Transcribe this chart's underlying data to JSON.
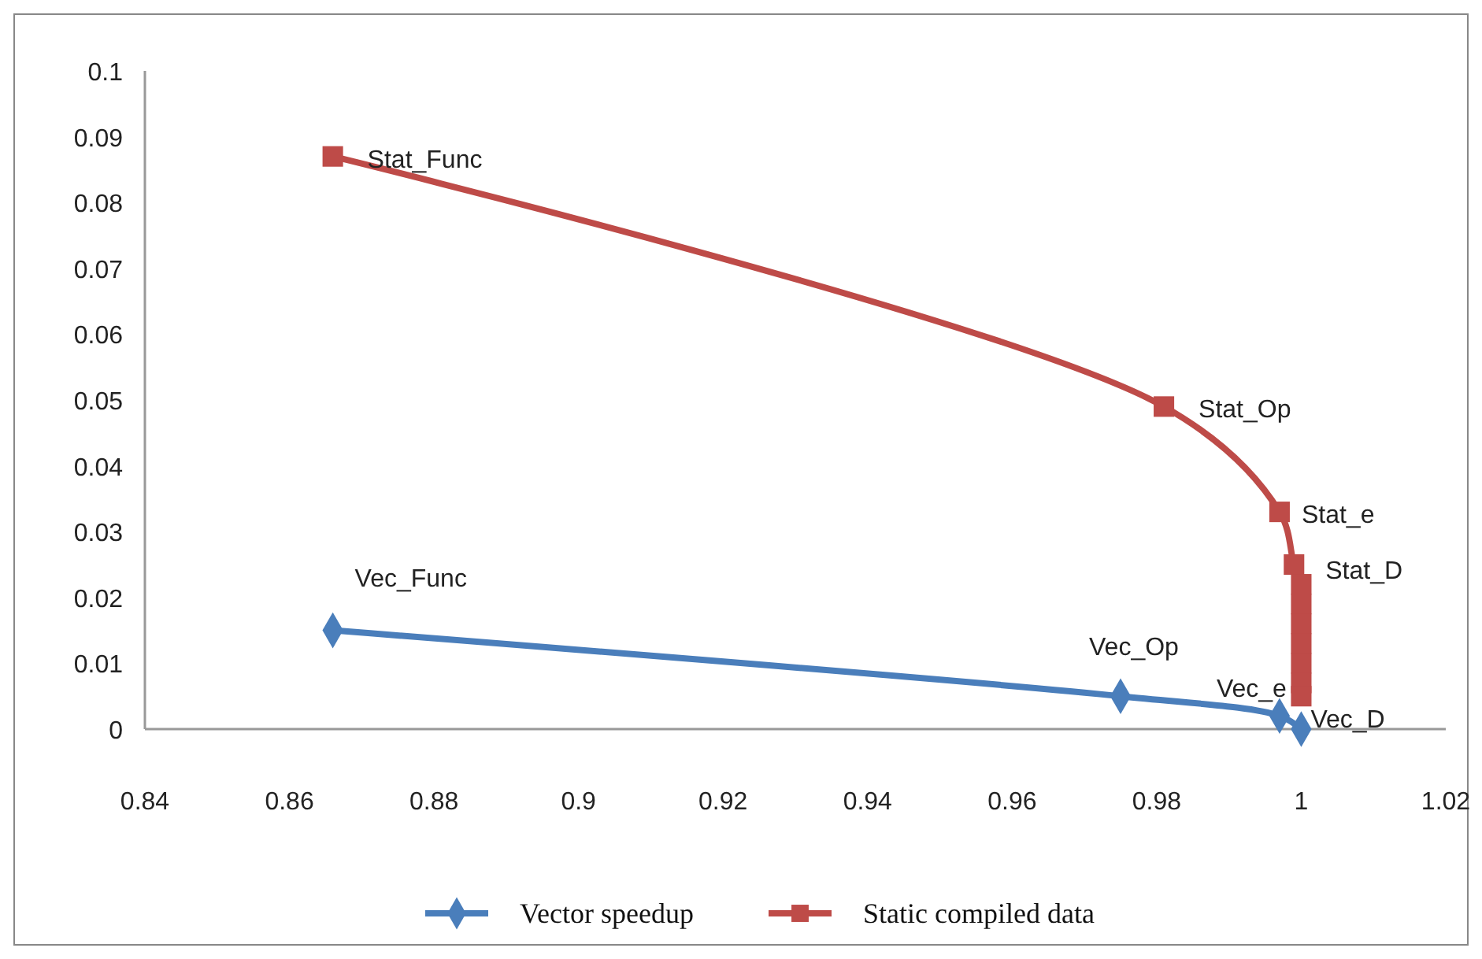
{
  "chart_data": {
    "type": "line",
    "xlim": [
      0.84,
      1.02
    ],
    "xticks": [
      0.84,
      0.86,
      0.88,
      0.9,
      0.92,
      0.94,
      0.96,
      0.98,
      1,
      1.02
    ],
    "ylim": [
      0,
      0.1
    ],
    "yticks": [
      0,
      0.01,
      0.02,
      0.03,
      0.04,
      0.05,
      0.06,
      0.07,
      0.08,
      0.09,
      0.1
    ],
    "grid": false,
    "legend": "bottom",
    "line_style": "solid",
    "series": [
      {
        "name": "Vector speedup",
        "color": "#4a7ebb",
        "marker": "diamond",
        "x": [
          0.866,
          0.975,
          0.997,
          1.0
        ],
        "values": [
          0.015,
          0.005,
          0.002,
          0.0
        ]
      },
      {
        "name": "Static compiled data",
        "color": "#be4b48",
        "marker": "square",
        "x": [
          0.866,
          0.981,
          0.997,
          0.999,
          1.0,
          1.0,
          1.0,
          1.0,
          1.0,
          1.0,
          1.0
        ],
        "values": [
          0.087,
          0.049,
          0.033,
          0.025,
          0.022,
          0.019,
          0.016,
          0.013,
          0.01,
          0.007,
          0.005
        ]
      }
    ],
    "annotations": [
      {
        "text": "Stat_Func",
        "x": 0.866,
        "y": 0.087
      },
      {
        "text": "Stat_Op",
        "x": 0.981,
        "y": 0.049
      },
      {
        "text": "Stat_e",
        "x": 0.997,
        "y": 0.033
      },
      {
        "text": "Stat_D",
        "x": 0.999,
        "y": 0.025
      },
      {
        "text": "Vec_Func",
        "x": 0.866,
        "y": 0.015
      },
      {
        "text": "Vec_Op",
        "x": 0.975,
        "y": 0.005
      },
      {
        "text": "Vec_e",
        "x": 0.997,
        "y": 0.002
      },
      {
        "text": "Vec_D",
        "x": 1.0,
        "y": 0.0
      }
    ]
  }
}
